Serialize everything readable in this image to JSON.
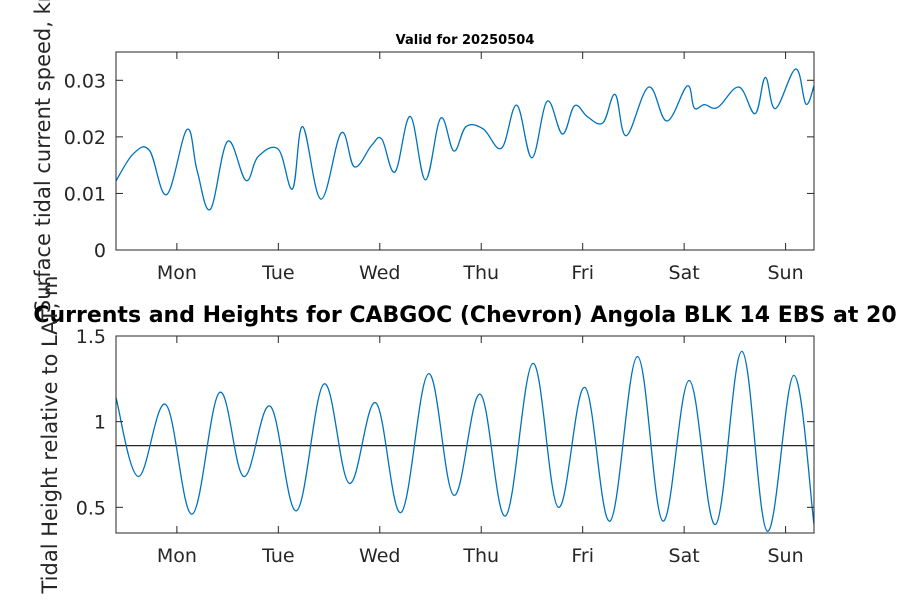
{
  "colors": {
    "series": "#0072BD",
    "reference_line": "#262626",
    "axes": "#262626"
  },
  "chart_data": [
    {
      "type": "line",
      "title": "Valid for 20250504",
      "ylabel": "Surface tidal current speed, kn",
      "xlabel": "",
      "ylim": [
        0,
        0.035
      ],
      "yticks": [
        0,
        0.01,
        0.02,
        0.03
      ],
      "ytick_labels": [
        "0",
        "0.01",
        "0.02",
        "0.03"
      ],
      "xlim": [
        0,
        6.88
      ],
      "xticks": [
        0.6,
        1.6,
        2.6,
        3.6,
        4.6,
        5.6,
        6.6
      ],
      "xtick_labels": [
        "Mon",
        "Tue",
        "Wed",
        "Thu",
        "Fri",
        "Sat",
        "Sun"
      ],
      "grid": false,
      "series": [
        {
          "x": [
            0.0,
            0.17,
            0.33,
            0.5,
            0.7,
            0.8,
            0.93,
            1.1,
            1.28,
            1.4,
            1.6,
            1.74,
            1.84,
            2.02,
            2.22,
            2.35,
            2.52,
            2.62,
            2.75,
            2.9,
            3.05,
            3.2,
            3.33,
            3.45,
            3.62,
            3.8,
            3.95,
            4.1,
            4.25,
            4.4,
            4.52,
            4.65,
            4.8,
            4.92,
            5.03,
            5.25,
            5.43,
            5.63,
            5.7,
            5.8,
            5.93,
            6.14,
            6.3,
            6.4,
            6.5,
            6.7,
            6.8,
            6.88
          ],
          "values": [
            0.0122,
            0.017,
            0.0176,
            0.0098,
            0.0213,
            0.014,
            0.0072,
            0.0192,
            0.0123,
            0.0165,
            0.0178,
            0.0108,
            0.0218,
            0.009,
            0.0207,
            0.0147,
            0.0185,
            0.0196,
            0.0138,
            0.0236,
            0.0124,
            0.0233,
            0.0175,
            0.0218,
            0.0214,
            0.018,
            0.0256,
            0.0163,
            0.0263,
            0.0205,
            0.0255,
            0.0235,
            0.0225,
            0.0275,
            0.0202,
            0.0288,
            0.0228,
            0.029,
            0.0251,
            0.0257,
            0.0252,
            0.0288,
            0.0241,
            0.0305,
            0.025,
            0.032,
            0.0258,
            0.029
          ]
        }
      ]
    },
    {
      "type": "line",
      "title": "Currents and Heights for CABGOC (Chevron)  Angola BLK 14  EBS at 20",
      "ylabel": "Tidal Height relative to LAT, m",
      "xlabel": "",
      "ylim": [
        0.35,
        1.5
      ],
      "yticks": [
        0.5,
        1,
        1.5
      ],
      "ytick_labels": [
        "0.5",
        "1",
        "1.5"
      ],
      "xlim": [
        0,
        6.88
      ],
      "xticks": [
        0.6,
        1.6,
        2.6,
        3.6,
        4.6,
        5.6,
        6.6
      ],
      "xtick_labels": [
        "Mon",
        "Tue",
        "Wed",
        "Thu",
        "Fri",
        "Sat",
        "Sun"
      ],
      "reference_line_y": 0.86,
      "grid": false,
      "series": [
        {
          "x": [
            0.0,
            0.22,
            0.49,
            0.75,
            1.02,
            1.26,
            1.52,
            1.78,
            2.05,
            2.3,
            2.56,
            2.81,
            3.08,
            3.33,
            3.59,
            3.84,
            4.11,
            4.36,
            4.62,
            4.87,
            5.14,
            5.39,
            5.65,
            5.91,
            6.17,
            6.42,
            6.68,
            6.88
          ],
          "values": [
            1.14,
            0.68,
            1.1,
            0.46,
            1.17,
            0.68,
            1.09,
            0.48,
            1.22,
            0.64,
            1.11,
            0.47,
            1.28,
            0.57,
            1.16,
            0.45,
            1.34,
            0.5,
            1.2,
            0.42,
            1.38,
            0.42,
            1.24,
            0.4,
            1.41,
            0.36,
            1.27,
            0.4
          ]
        }
      ]
    }
  ]
}
